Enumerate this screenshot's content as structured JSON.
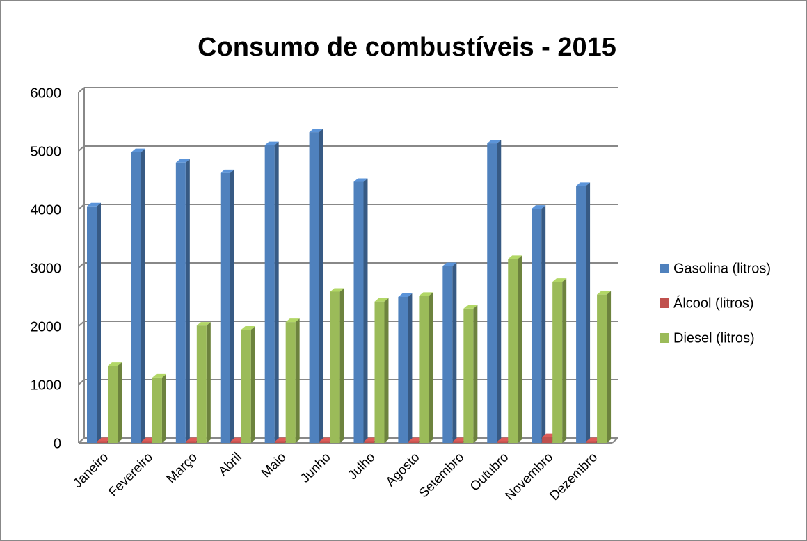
{
  "chart_data": {
    "type": "bar3d",
    "title": "Consumo de combustíveis - 2015",
    "categories": [
      "Janeiro",
      "Fevereiro",
      "Março",
      "Abril",
      "Maio",
      "Junho",
      "Julho",
      "Agosto",
      "Setembro",
      "Outubro",
      "Novembro",
      "Dezembro"
    ],
    "series": [
      {
        "name": "Gasolina (litros)",
        "color": "#4f81bd",
        "values": [
          4050,
          4980,
          4800,
          4620,
          5100,
          5320,
          4470,
          2500,
          3030,
          5130,
          4010,
          4400
        ]
      },
      {
        "name": "Álcool (litros)",
        "color": "#c0504d",
        "values": [
          30,
          30,
          30,
          30,
          30,
          30,
          30,
          30,
          30,
          30,
          100,
          30
        ]
      },
      {
        "name": "Diesel (litros)",
        "color": "#9bbb59",
        "values": [
          1320,
          1120,
          2010,
          1940,
          2070,
          2590,
          2420,
          2520,
          2300,
          3150,
          2760,
          2540
        ]
      }
    ],
    "ylim": [
      0,
      6000
    ],
    "yticks": [
      0,
      1000,
      2000,
      3000,
      4000,
      5000,
      6000
    ],
    "grid": true,
    "legend": "right"
  }
}
